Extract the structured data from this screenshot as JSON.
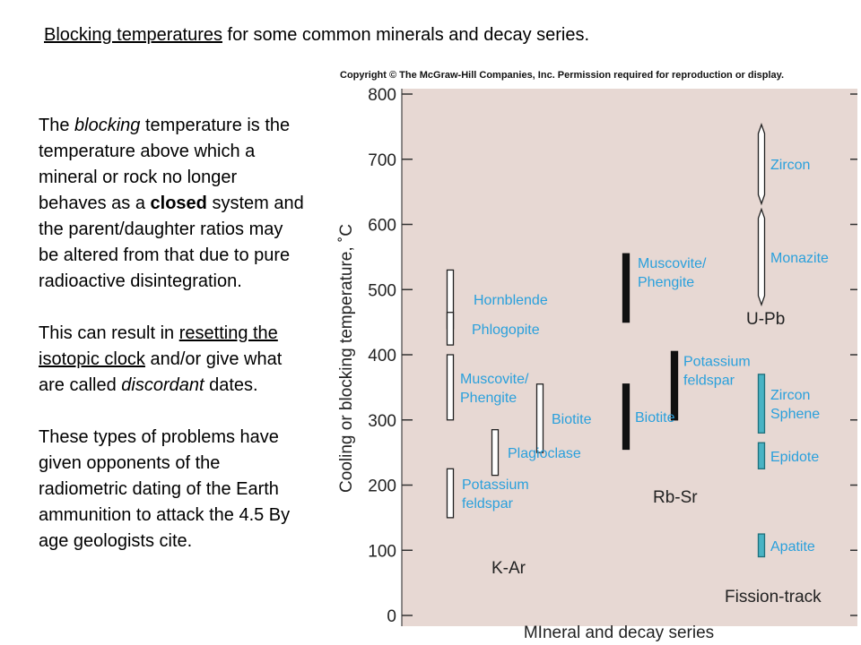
{
  "title": {
    "link": "Blocking temperatures",
    "rest": " for some common minerals and decay series."
  },
  "body": {
    "p1_a": "The ",
    "p1_b": "blocking",
    "p1_c": " temperature is the temperature above which a mineral or rock no longer behaves as a ",
    "p1_d": "closed",
    "p1_e": " system and the parent/daughter ratios may be altered from that due to pure radioactive disintegration.",
    "p2_a": "This can result in ",
    "p2_b": "resetting the isotopic clock",
    "p2_c": " and/or give what are called ",
    "p2_d": "discordant",
    "p2_e": " dates.",
    "p3": "These types of problems have given opponents of the radiometric dating of the Earth ammunition to attack the 4.5 By age geologists cite."
  },
  "chart_data": {
    "type": "range-bar",
    "copyright": "Copyright © The McGraw-Hill Companies, Inc. Permission required for reproduction or display.",
    "ylabel": "Cooling or blocking temperature, ˚C",
    "xlabel": "MIneral and decay series",
    "ylim": [
      0,
      800
    ],
    "yticks": [
      0,
      100,
      200,
      300,
      400,
      500,
      600,
      700,
      800
    ],
    "series": [
      {
        "name": "K-Ar",
        "items": [
          {
            "label": "Hornblende",
            "low": 440,
            "high": 530,
            "style": "open",
            "shape": "rect"
          },
          {
            "label": "Phlogopite",
            "low": 415,
            "high": 465,
            "style": "open",
            "shape": "rect"
          },
          {
            "label": "Muscovite/ Phengite",
            "low": 300,
            "high": 400,
            "style": "open",
            "shape": "rect"
          },
          {
            "label": "Biotite",
            "low": 250,
            "high": 355,
            "style": "open",
            "shape": "rect"
          },
          {
            "label": "Plagioclase",
            "low": 215,
            "high": 285,
            "style": "open",
            "shape": "rect"
          },
          {
            "label": "Potassium feldspar",
            "low": 150,
            "high": 225,
            "style": "open",
            "shape": "rect"
          }
        ]
      },
      {
        "name": "Rb-Sr",
        "items": [
          {
            "label": "Muscovite/ Phengite",
            "low": 450,
            "high": 555,
            "style": "solid",
            "shape": "rect"
          },
          {
            "label": "Potassium feldspar",
            "low": 300,
            "high": 405,
            "style": "solid",
            "shape": "rect"
          },
          {
            "label": "Biotite",
            "low": 255,
            "high": 355,
            "style": "solid",
            "shape": "rect"
          }
        ]
      },
      {
        "name": "U-Pb",
        "items": [
          {
            "label": "Zircon",
            "low": 640,
            "high": 745,
            "style": "open",
            "shape": "pointed"
          },
          {
            "label": "Monazite",
            "low": 485,
            "high": 615,
            "style": "open",
            "shape": "pointed"
          }
        ]
      },
      {
        "name": "Fission-track",
        "items": [
          {
            "label": "Zircon Sphene",
            "low": 280,
            "high": 370,
            "style": "teal",
            "shape": "rect"
          },
          {
            "label": "Epidote",
            "low": 225,
            "high": 265,
            "style": "teal",
            "shape": "rect"
          },
          {
            "label": "Apatite",
            "low": 90,
            "high": 125,
            "style": "teal",
            "shape": "rect"
          }
        ]
      }
    ],
    "colors": {
      "label": "#2aa0dc",
      "teal": "#49b3c4",
      "panel": "#e7d8d3",
      "solid": "#111111"
    }
  }
}
